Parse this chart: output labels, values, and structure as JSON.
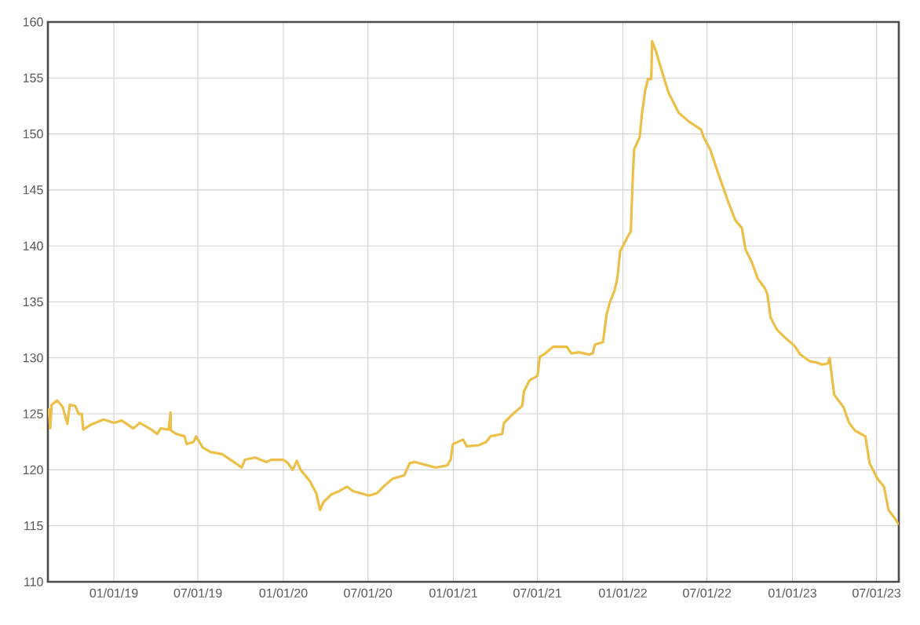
{
  "chart_data": {
    "type": "line",
    "color": "#ecbf48",
    "grid": true,
    "marker": "none",
    "line_style": "solid",
    "xlim": [
      "2018-08-12",
      "2023-08-18"
    ],
    "ylim": [
      110,
      160
    ],
    "yticks": [
      110,
      115,
      120,
      125,
      130,
      135,
      140,
      145,
      150,
      155,
      160
    ],
    "xticks": [
      {
        "value": "2019-01-01",
        "label": "01/01/19"
      },
      {
        "value": "2019-07-01",
        "label": "07/01/19"
      },
      {
        "value": "2020-01-01",
        "label": "01/01/20"
      },
      {
        "value": "2020-07-01",
        "label": "07/01/20"
      },
      {
        "value": "2021-01-01",
        "label": "01/01/21"
      },
      {
        "value": "2021-07-01",
        "label": "07/01/21"
      },
      {
        "value": "2022-01-01",
        "label": "01/01/22"
      },
      {
        "value": "2022-07-01",
        "label": "07/01/22"
      },
      {
        "value": "2023-01-01",
        "label": "01/01/23"
      },
      {
        "value": "2023-07-01",
        "label": "07/01/23"
      }
    ],
    "x": [
      "2018-08-14",
      "2018-08-17",
      "2018-08-20",
      "2018-09-01",
      "2018-09-13",
      "2018-09-23",
      "2018-09-28",
      "2018-10-10",
      "2018-10-17",
      "2018-10-24",
      "2018-10-27",
      "2018-11-11",
      "2018-12-10",
      "2019-01-01",
      "2019-01-18",
      "2019-02-12",
      "2019-02-26",
      "2019-03-26",
      "2019-04-04",
      "2019-04-12",
      "2019-04-29",
      "2019-05-03",
      "2019-05-04",
      "2019-05-16",
      "2019-06-02",
      "2019-06-07",
      "2019-06-22",
      "2019-06-27",
      "2019-07-11",
      "2019-07-28",
      "2019-08-22",
      "2019-09-20",
      "2019-10-03",
      "2019-10-10",
      "2019-11-01",
      "2019-11-26",
      "2019-12-05",
      "2020-01-01",
      "2020-01-11",
      "2020-01-21",
      "2020-01-30",
      "2020-02-07",
      "2020-02-27",
      "2020-03-12",
      "2020-03-20",
      "2020-03-27",
      "2020-04-13",
      "2020-04-30",
      "2020-05-17",
      "2020-05-30",
      "2020-06-16",
      "2020-07-03",
      "2020-07-20",
      "2020-08-06",
      "2020-08-23",
      "2020-09-17",
      "2020-09-29",
      "2020-10-09",
      "2020-11-07",
      "2020-11-24",
      "2020-12-19",
      "2020-12-26",
      "2020-12-31",
      "2021-01-22",
      "2021-01-30",
      "2021-02-25",
      "2021-03-13",
      "2021-03-22",
      "2021-04-16",
      "2021-04-20",
      "2021-05-12",
      "2021-05-29",
      "2021-06-02",
      "2021-06-14",
      "2021-07-01",
      "2021-07-06",
      "2021-07-18",
      "2021-08-04",
      "2021-09-02",
      "2021-09-12",
      "2021-09-29",
      "2021-10-19",
      "2021-10-28",
      "2021-11-02",
      "2021-11-19",
      "2021-11-27",
      "2021-12-05",
      "2021-12-14",
      "2021-12-20",
      "2021-12-26",
      "2022-01-11",
      "2022-01-18",
      "2022-01-22",
      "2022-01-25",
      "2022-02-06",
      "2022-02-11",
      "2022-02-18",
      "2022-02-24",
      "2022-03-03",
      "2022-03-05",
      "2022-03-13",
      "2022-03-23",
      "2022-04-09",
      "2022-05-01",
      "2022-05-23",
      "2022-06-18",
      "2022-06-24",
      "2022-07-08",
      "2022-07-25",
      "2022-08-06",
      "2022-08-16",
      "2022-08-31",
      "2022-09-14",
      "2022-09-22",
      "2022-10-06",
      "2022-10-18",
      "2022-11-03",
      "2022-11-08",
      "2022-11-15",
      "2022-11-29",
      "2022-12-19",
      "2023-01-05",
      "2023-01-18",
      "2023-02-07",
      "2023-02-21",
      "2023-03-06",
      "2023-03-18",
      "2023-03-22",
      "2023-03-27",
      "2023-04-01",
      "2023-04-21",
      "2023-05-03",
      "2023-05-16",
      "2023-06-07",
      "2023-06-16",
      "2023-07-03",
      "2023-07-17",
      "2023-07-27",
      "2023-08-09",
      "2023-08-18"
    ],
    "values": [
      125.5,
      123.7,
      125.8,
      126.2,
      125.6,
      124.1,
      125.8,
      125.7,
      125.0,
      125.0,
      123.6,
      124.0,
      124.5,
      124.2,
      124.4,
      123.7,
      124.2,
      123.5,
      123.2,
      123.7,
      123.6,
      125.1,
      123.5,
      123.2,
      123.0,
      122.3,
      122.5,
      123.0,
      122.0,
      121.6,
      121.4,
      120.6,
      120.2,
      120.9,
      121.1,
      120.7,
      120.9,
      120.9,
      120.6,
      120.0,
      120.8,
      120.0,
      119.0,
      117.9,
      116.4,
      117.1,
      117.8,
      118.1,
      118.5,
      118.1,
      117.9,
      117.7,
      117.9,
      118.6,
      119.2,
      119.5,
      120.6,
      120.7,
      120.4,
      120.2,
      120.4,
      120.9,
      122.3,
      122.7,
      122.1,
      122.2,
      122.5,
      123.0,
      123.2,
      124.2,
      125.1,
      125.7,
      127.0,
      128.0,
      128.4,
      130.1,
      130.4,
      131.0,
      131.0,
      130.4,
      130.5,
      130.3,
      130.4,
      131.2,
      131.4,
      133.9,
      135.1,
      136.0,
      137.1,
      139.5,
      140.8,
      141.3,
      145.8,
      148.6,
      149.7,
      151.8,
      153.9,
      154.9,
      154.9,
      158.3,
      157.4,
      156.0,
      153.7,
      151.9,
      151.1,
      150.4,
      149.7,
      148.6,
      146.5,
      145.1,
      143.9,
      142.3,
      141.6,
      139.7,
      138.5,
      137.1,
      136.2,
      135.7,
      133.6,
      132.5,
      131.7,
      131.1,
      130.3,
      129.7,
      129.6,
      129.4,
      129.5,
      130.0,
      128.3,
      126.7,
      125.6,
      124.2,
      123.5,
      123.0,
      120.6,
      119.2,
      118.5,
      116.4,
      115.7,
      115.1
    ]
  }
}
